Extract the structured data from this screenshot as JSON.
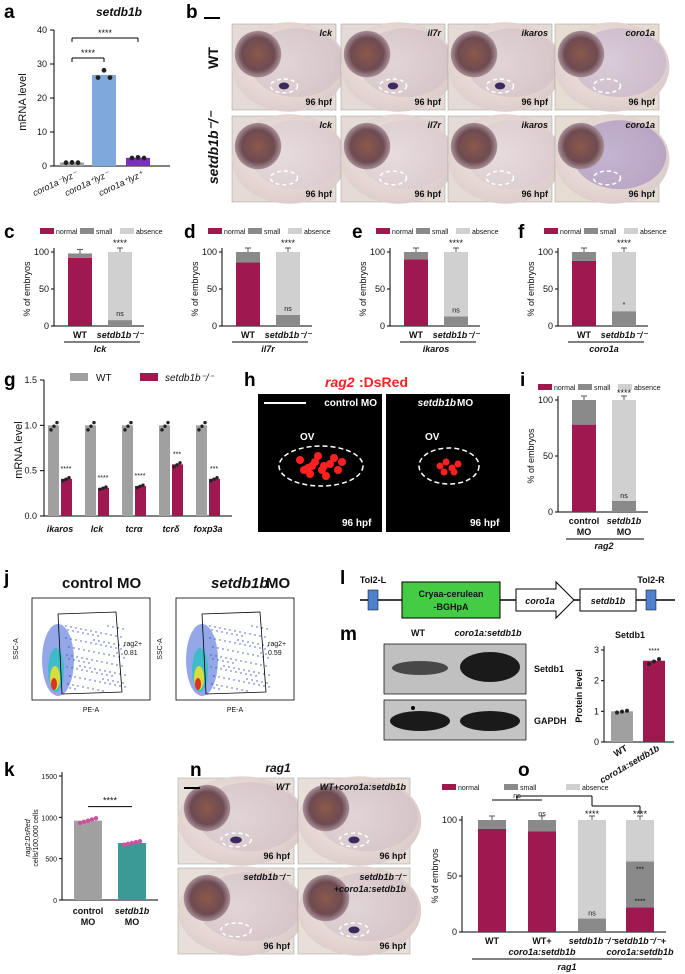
{
  "panel_letters": {
    "a": "a",
    "b": "b",
    "c": "c",
    "d": "d",
    "e": "e",
    "f": "f",
    "g": "g",
    "h": "h",
    "i": "i",
    "j": "j",
    "k": "k",
    "l": "l",
    "m": "m",
    "n": "n",
    "o": "o"
  },
  "colors": {
    "crimson": "#a01850",
    "light_blue": "#7fa9dc",
    "purple": "#7b2fbe",
    "gray": "#a0a0a0",
    "dark_gray": "#8a8a8a",
    "light_gray": "#d0d0d0",
    "teal": "#3c9a96",
    "green": "#44cc44",
    "blue": "#5080d0",
    "red": "#ff2020"
  },
  "panel_a": {
    "title": "setdb1b",
    "ylabel": "mRNA level",
    "yticks": [
      "0",
      "10",
      "20",
      "30",
      "40"
    ],
    "sig1": "****",
    "sig2": "****",
    "xlabels": [
      "coro1a⁻lyz⁻",
      "coro1a⁺lyz⁻",
      "coro1a⁺lyz⁺"
    ]
  },
  "panel_b": {
    "row_wt": "WT",
    "row_mut": "setdb1b⁻/⁻",
    "genes": [
      "lck",
      "il7r",
      "ikaros",
      "coro1a"
    ],
    "stage": "96 hpf"
  },
  "legend3": {
    "normal": "normal",
    "small": "small",
    "absence": "absence"
  },
  "stack_panels": [
    {
      "gene": "lck",
      "wt_label": "WT",
      "mut_label": "setdb1b⁻/⁻",
      "sig": "****",
      "sub": "ns"
    },
    {
      "gene": "il7r",
      "wt_label": "WT",
      "mut_label": "setdb1b⁻/⁻",
      "sig": "****",
      "sub": "ns"
    },
    {
      "gene": "ikaros",
      "wt_label": "WT",
      "mut_label": "setdb1b⁻/⁻",
      "sig": "****",
      "sub": "ns"
    },
    {
      "gene": "coro1a",
      "wt_label": "WT",
      "mut_label": "setdb1b⁻/⁻",
      "sig": "****",
      "sub": "*"
    }
  ],
  "stack_yticks": [
    "0",
    "50",
    "100"
  ],
  "stack_ylabel": "% of embryos",
  "panel_g": {
    "legend_wt": "WT",
    "legend_mut": "setdb1b⁻/⁻",
    "ylabel": "mRNA level",
    "yticks": [
      "0.0",
      "0.5",
      "1.0",
      "1.5"
    ],
    "genes": [
      "ikaros",
      "lck",
      "tcrα",
      "tcrδ",
      "foxp3a"
    ],
    "sigs": [
      "****",
      "****",
      "****",
      "***",
      "***"
    ]
  },
  "panel_h": {
    "title_gene": "rag2",
    "title_rest": ":DsRed",
    "left_label": "control MO",
    "right_gene": "setdb1b",
    "right_rest": " MO",
    "ov": "OV",
    "stage": "96 hpf"
  },
  "panel_i": {
    "legend": [
      "normal",
      "small",
      "absence"
    ],
    "ylabel": "% of embryos",
    "yticks": [
      "0",
      "50",
      "100"
    ],
    "x1a": "control",
    "x1b": "MO",
    "x2a": "setdb1b",
    "x2b": "MO",
    "gene": "rag2",
    "sig": "****",
    "sub": "ns"
  },
  "panel_j": {
    "left_title": "control MO",
    "right_gene": "setdb1b",
    "right_rest": " MO",
    "gate": "rag2+",
    "left_pct": "0.81",
    "right_pct": "0.59",
    "xaxis": "PE-A",
    "yaxis": "SSC-A"
  },
  "panel_k": {
    "ylabel1": "rag2:DsRed",
    "ylabel2": "cells/100,000 cells",
    "yticks": [
      "0",
      "500",
      "1000",
      "1500"
    ],
    "x1a": "control",
    "x1b": "MO",
    "x2": "setdb1b",
    "x2b": "MO",
    "sig": "****"
  },
  "panel_l": {
    "left": "Tol2-L",
    "right": "Tol2-R",
    "box1a": "Cryaa-cerulean",
    "box1b": "-BGHpA",
    "arrow": "coro1a",
    "box2": "setdb1b"
  },
  "panel_m": {
    "col1": "WT",
    "col2": "coro1a:setdb1b",
    "band1": "Setdb1",
    "band2": "GAPDH",
    "bar_title": "Setdb1",
    "ylabel": "Protein level",
    "yticks": [
      "0",
      "1",
      "2",
      "3"
    ],
    "x1": "WT",
    "x2": "coro1a:setdb1b",
    "sig": "****"
  },
  "panel_n": {
    "title": "rag1",
    "labels": [
      "WT",
      "WT+coro1a:setdb1b",
      "setdb1b⁻/⁻",
      "setdb1b⁻/⁻",
      "+coro1a:setdb1b"
    ],
    "stage": "96 hpf"
  },
  "panel_o": {
    "legend": [
      "normal",
      "small",
      "absence"
    ],
    "ylabel": "% of embryos",
    "yticks": [
      "0",
      "50",
      "100"
    ],
    "x": [
      "WT",
      "WT+",
      "coro1a:setdb1b",
      "setdb1b⁻/⁻",
      "setdb1b⁻/⁻+",
      "coro1a:setdb1b"
    ],
    "gene": "rag1",
    "sig_ns": "ns",
    "sig_top": "****",
    "sig_top2": "****",
    "sig_a": "****",
    "sig_b": "***",
    "sig_c": "****",
    "sub_ns": "ns"
  },
  "chart_data": [
    {
      "type": "bar",
      "panel": "a",
      "title": "setdb1b",
      "ylabel": "mRNA level",
      "ylim": [
        0,
        40
      ],
      "categories": [
        "coro1a⁻lyz⁻",
        "coro1a⁺lyz⁻",
        "coro1a⁺lyz⁺"
      ],
      "values": [
        1,
        26.8,
        2.4
      ]
    },
    {
      "type": "bar",
      "panel": "c",
      "stacked": true,
      "ylim": [
        0,
        100
      ],
      "categories": [
        "WT",
        "setdb1b⁻/⁻"
      ],
      "series": [
        {
          "name": "normal",
          "values": [
            92,
            0
          ]
        },
        {
          "name": "small",
          "values": [
            6,
            8
          ]
        },
        {
          "name": "absence",
          "values": [
            0,
            92
          ]
        }
      ]
    },
    {
      "type": "bar",
      "panel": "d",
      "stacked": true,
      "ylim": [
        0,
        100
      ],
      "categories": [
        "WT",
        "setdb1b⁻/⁻"
      ],
      "series": [
        {
          "name": "normal",
          "values": [
            86,
            0
          ]
        },
        {
          "name": "small",
          "values": [
            14,
            15
          ]
        },
        {
          "name": "absence",
          "values": [
            0,
            85
          ]
        }
      ]
    },
    {
      "type": "bar",
      "panel": "e",
      "stacked": true,
      "ylim": [
        0,
        100
      ],
      "categories": [
        "WT",
        "setdb1b⁻/⁻"
      ],
      "series": [
        {
          "name": "normal",
          "values": [
            90,
            0
          ]
        },
        {
          "name": "small",
          "values": [
            10,
            13
          ]
        },
        {
          "name": "absence",
          "values": [
            0,
            87
          ]
        }
      ]
    },
    {
      "type": "bar",
      "panel": "f",
      "stacked": true,
      "ylim": [
        0,
        100
      ],
      "categories": [
        "WT",
        "setdb1b⁻/⁻"
      ],
      "series": [
        {
          "name": "normal",
          "values": [
            88,
            0
          ]
        },
        {
          "name": "small",
          "values": [
            12,
            20
          ]
        },
        {
          "name": "absence",
          "values": [
            0,
            80
          ]
        }
      ]
    },
    {
      "type": "bar",
      "panel": "g",
      "ylabel": "mRNA level",
      "ylim": [
        0,
        1.5
      ],
      "categories": [
        "ikaros",
        "lck",
        "tcrα",
        "tcrδ",
        "foxp3a"
      ],
      "series": [
        {
          "name": "WT",
          "values": [
            1,
            1,
            1,
            1,
            1
          ]
        },
        {
          "name": "setdb1b⁻/⁻",
          "values": [
            0.41,
            0.31,
            0.33,
            0.57,
            0.41
          ]
        }
      ]
    },
    {
      "type": "bar",
      "panel": "i",
      "stacked": true,
      "ylim": [
        0,
        100
      ],
      "categories": [
        "control MO",
        "setdb1b MO"
      ],
      "series": [
        {
          "name": "normal",
          "values": [
            78,
            0
          ]
        },
        {
          "name": "small",
          "values": [
            22,
            10
          ]
        },
        {
          "name": "absence",
          "values": [
            0,
            90
          ]
        }
      ]
    },
    {
      "type": "bar",
      "panel": "k",
      "ylim": [
        0,
        1500
      ],
      "categories": [
        "control MO",
        "setdb1b MO"
      ],
      "values": [
        960,
        690
      ]
    },
    {
      "type": "bar",
      "panel": "m",
      "title": "Setdb1",
      "ylabel": "Protein level",
      "ylim": [
        0,
        3
      ],
      "categories": [
        "WT",
        "coro1a:setdb1b"
      ],
      "values": [
        1,
        2.65
      ]
    },
    {
      "type": "bar",
      "panel": "o",
      "stacked": true,
      "ylim": [
        0,
        100
      ],
      "categories": [
        "WT",
        "WT+coro1a:setdb1b",
        "setdb1b⁻/⁻",
        "setdb1b⁻/⁻+coro1a:setdb1b"
      ],
      "series": [
        {
          "name": "normal",
          "values": [
            92,
            90,
            0,
            22
          ]
        },
        {
          "name": "small",
          "values": [
            8,
            10,
            12,
            41
          ]
        },
        {
          "name": "absence",
          "values": [
            0,
            0,
            88,
            37
          ]
        }
      ]
    }
  ]
}
